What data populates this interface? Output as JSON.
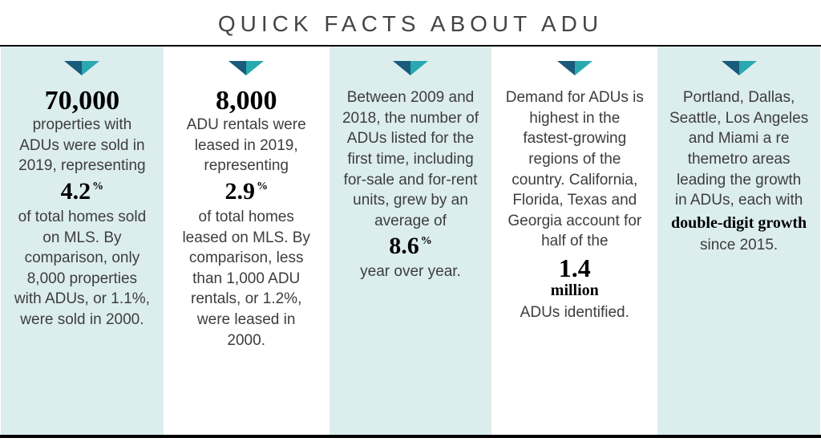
{
  "header": {
    "title": "QUICK FACTS ABOUT ADU"
  },
  "icon": {
    "left_color": "#1a5a7a",
    "right_color": "#2aa8b0",
    "width": 44,
    "height": 18
  },
  "colors": {
    "card_alt_bg": "#dcedee",
    "card_plain_bg": "#ffffff",
    "text": "#3d3d3d",
    "emphasis": "#000000"
  },
  "cards": [
    {
      "bg": "alt",
      "segments": [
        {
          "type": "big",
          "value": "70,000"
        },
        {
          "type": "text",
          "value": "properties with ADUs were sold in 2019, representing"
        },
        {
          "type": "pct",
          "value": "4.2",
          "suffix": "%"
        },
        {
          "type": "text",
          "value": "of total homes sold on MLS. By comparison, only 8,000 properties with ADUs, or 1.1%, were sold in 2000."
        }
      ]
    },
    {
      "bg": "plain",
      "segments": [
        {
          "type": "big",
          "value": "8,000"
        },
        {
          "type": "text",
          "value": "ADU rentals were leased in 2019, representing"
        },
        {
          "type": "pct",
          "value": "2.9",
          "suffix": "%"
        },
        {
          "type": "text",
          "value": "of total homes leased on MLS. By comparison, less than 1,000 ADU rentals, or 1.2%, were leased in 2000."
        }
      ]
    },
    {
      "bg": "alt",
      "segments": [
        {
          "type": "text",
          "value": "Between 2009 and 2018, the number of ADUs listed for the first time, including for-sale and for-rent units, grew by an average of"
        },
        {
          "type": "pct",
          "value": "8.6",
          "suffix": "%"
        },
        {
          "type": "text",
          "value": "year over year."
        }
      ]
    },
    {
      "bg": "plain",
      "segments": [
        {
          "type": "text",
          "value": "Demand for ADUs is highest in the fastest-growing regions of the country. California, Florida, Texas and Georgia account for half of the"
        },
        {
          "type": "numunit",
          "value": "1.4",
          "unit": "million"
        },
        {
          "type": "text",
          "value": "ADUs identified."
        }
      ]
    },
    {
      "bg": "alt",
      "segments": [
        {
          "type": "text",
          "value": "Portland, Dallas, Seattle, Los Angeles and Miami a re themetro areas leading the growth in ADUs, each with"
        },
        {
          "type": "bold",
          "value": "double-digit growth"
        },
        {
          "type": "text",
          "value": "since 2015."
        }
      ]
    }
  ]
}
